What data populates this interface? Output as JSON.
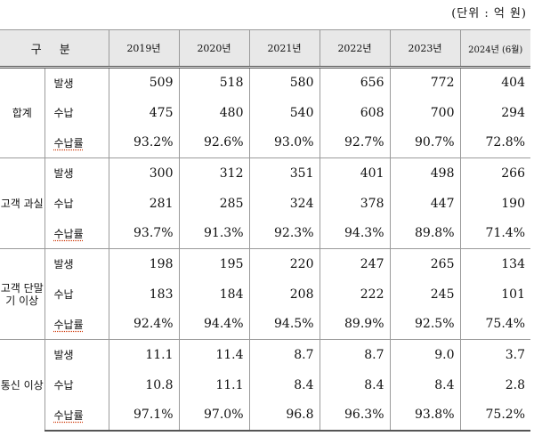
{
  "unit_label": "(단위 : 억 원)",
  "header": {
    "category": "구 분",
    "years": [
      "2019년",
      "2020년",
      "2021년",
      "2022년",
      "2023년",
      "2024년 (6월)"
    ]
  },
  "groups": [
    {
      "name": "합계",
      "rows": [
        {
          "label": "발생",
          "values": [
            "509",
            "518",
            "580",
            "656",
            "772",
            "404"
          ]
        },
        {
          "label": "수납",
          "values": [
            "475",
            "480",
            "540",
            "608",
            "700",
            "294"
          ]
        },
        {
          "label": "수납률",
          "values": [
            "93.2%",
            "92.6%",
            "93.0%",
            "92.7%",
            "90.7%",
            "72.8%"
          ]
        }
      ]
    },
    {
      "name": "고객 과실",
      "rows": [
        {
          "label": "발생",
          "values": [
            "300",
            "312",
            "351",
            "401",
            "498",
            "266"
          ]
        },
        {
          "label": "수납",
          "values": [
            "281",
            "285",
            "324",
            "378",
            "447",
            "190"
          ]
        },
        {
          "label": "수납률",
          "values": [
            "93.7%",
            "91.3%",
            "92.3%",
            "94.3%",
            "89.8%",
            "71.4%"
          ]
        }
      ]
    },
    {
      "name": "고객 단말기 이상",
      "rows": [
        {
          "label": "발생",
          "values": [
            "198",
            "195",
            "220",
            "247",
            "265",
            "134"
          ]
        },
        {
          "label": "수납",
          "values": [
            "183",
            "184",
            "208",
            "222",
            "245",
            "101"
          ]
        },
        {
          "label": "수납률",
          "values": [
            "92.4%",
            "94.4%",
            "94.5%",
            "89.9%",
            "92.5%",
            "75.4%"
          ]
        }
      ]
    },
    {
      "name": "통신 이상",
      "rows": [
        {
          "label": "발생",
          "values": [
            "11.1",
            "11.4",
            "8.7",
            "8.7",
            "9.0",
            "3.7"
          ]
        },
        {
          "label": "수납",
          "values": [
            "10.8",
            "11.1",
            "8.4",
            "8.4",
            "8.4",
            "2.8"
          ]
        },
        {
          "label": "수납률",
          "values": [
            "97.1%",
            "97.0%",
            "96.8",
            "96.3%",
            "93.8%",
            "75.2%"
          ]
        }
      ]
    }
  ]
}
